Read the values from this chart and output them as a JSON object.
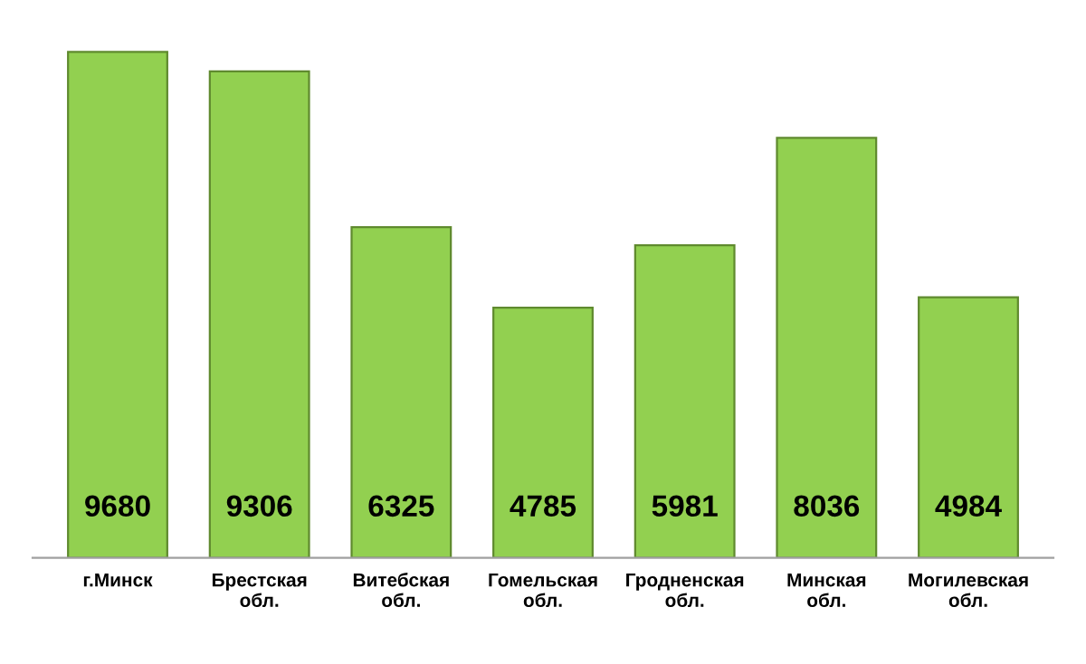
{
  "chart_data": {
    "type": "bar",
    "categories": [
      "г.Минск",
      "Брестская обл.",
      "Витебская обл.",
      "Гомельская обл.",
      "Гродненская обл.",
      "Минская обл.",
      "Могилевская обл."
    ],
    "values": [
      9680,
      9306,
      6325,
      4785,
      5981,
      8036,
      4984
    ],
    "color": "#92d050",
    "data_labels": true,
    "grid": false,
    "legend": false
  }
}
